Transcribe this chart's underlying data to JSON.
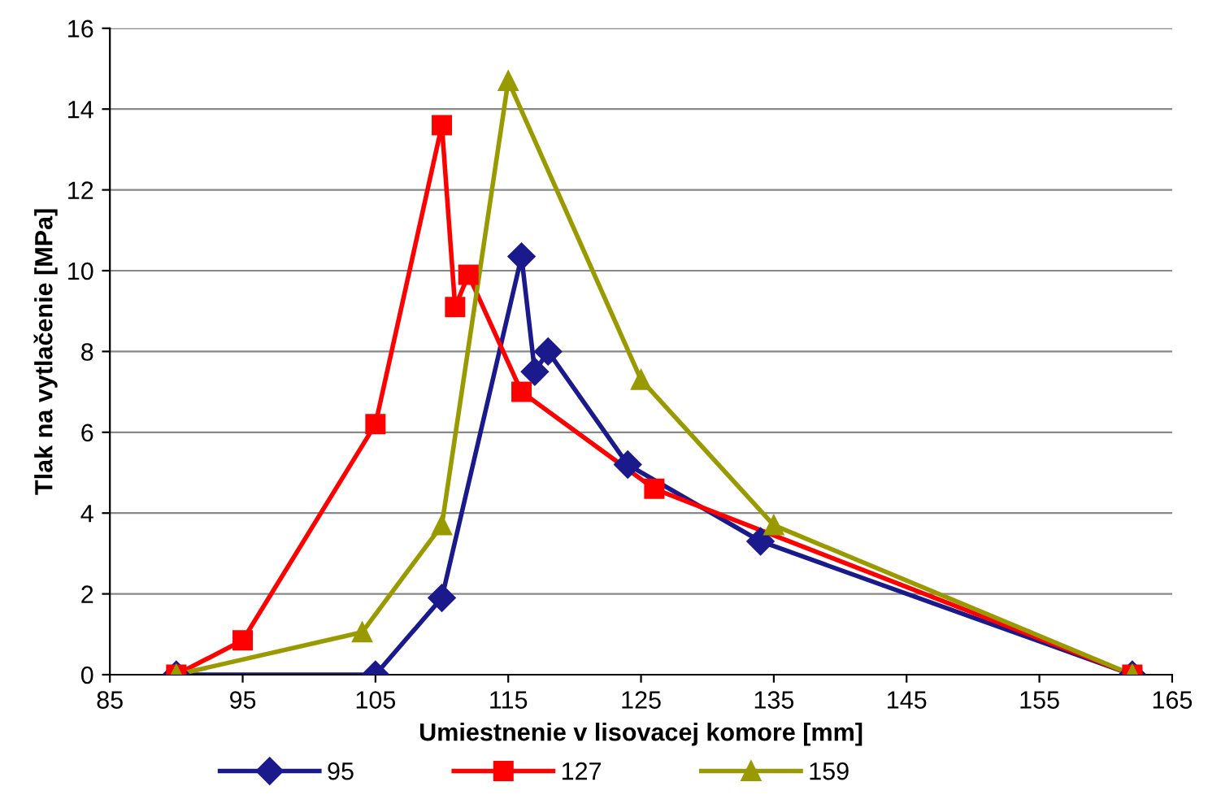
{
  "chart_data": {
    "type": "line",
    "xlabel": "Umiestnenie v lisovacej komore [mm]",
    "ylabel": "Tlak na vytlačenie [MPa]",
    "xlim": [
      85,
      165
    ],
    "xticks": [
      85,
      95,
      105,
      115,
      125,
      135,
      145,
      155,
      165
    ],
    "ylim": [
      0,
      16
    ],
    "yticks": [
      0,
      2,
      4,
      6,
      8,
      10,
      12,
      14,
      16
    ],
    "grid": "y",
    "legend": "bottom",
    "line_style": "solid",
    "series": [
      {
        "name": "95",
        "color": "#1a1a8c",
        "marker": "diamond",
        "x": [
          90,
          105,
          110,
          116,
          117,
          118,
          124,
          134,
          162
        ],
        "values": [
          0,
          0,
          1.9,
          10.35,
          7.5,
          8.0,
          5.2,
          3.3,
          0
        ]
      },
      {
        "name": "127",
        "color": "#ff0000",
        "marker": "square",
        "x": [
          90,
          95,
          105,
          110,
          111,
          112,
          116,
          126,
          162
        ],
        "values": [
          0,
          0.85,
          6.2,
          13.6,
          9.1,
          9.9,
          7.0,
          4.6,
          0
        ]
      },
      {
        "name": "159",
        "color": "#999900",
        "marker": "triangle",
        "x": [
          90,
          104,
          110,
          115,
          125,
          135,
          162
        ],
        "values": [
          0,
          1.05,
          3.7,
          14.7,
          7.3,
          3.7,
          0
        ]
      }
    ]
  }
}
